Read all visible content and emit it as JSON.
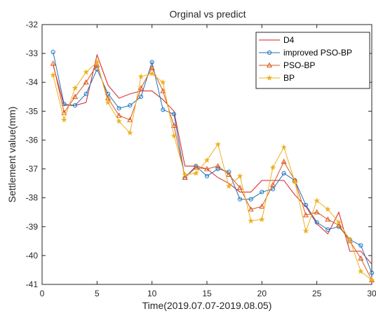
{
  "chart_data": {
    "type": "line",
    "title": "Orginal vs predict",
    "xlabel": "Time(2019.07.07-2019.08.05)",
    "ylabel": "Settlement value(mm)",
    "xlim": [
      0,
      30
    ],
    "ylim": [
      -41,
      -32
    ],
    "x_ticks": [
      0,
      5,
      10,
      15,
      20,
      25,
      30
    ],
    "y_ticks": [
      -32,
      -33,
      -34,
      -35,
      -36,
      -37,
      -38,
      -39,
      -40,
      -41
    ],
    "legend_position": "top-right",
    "grid": false,
    "series": [
      {
        "name": "D4",
        "color": "#d81e1e",
        "marker": "none",
        "x": [
          1,
          2,
          3,
          4,
          5,
          6,
          7,
          8,
          9,
          10,
          11,
          12,
          13,
          14,
          15,
          16,
          17,
          18,
          19,
          20,
          21,
          22,
          23,
          24,
          25,
          26,
          27,
          28,
          29,
          30
        ],
        "y": [
          -33.4,
          -34.8,
          -34.8,
          -34.7,
          -33.05,
          -34.1,
          -34.55,
          -34.4,
          -34.3,
          -34.3,
          -34.6,
          -35.0,
          -36.9,
          -36.9,
          -37.0,
          -37.3,
          -37.5,
          -37.8,
          -37.8,
          -37.4,
          -37.4,
          -37.4,
          -37.9,
          -38.3,
          -38.9,
          -39.25,
          -38.5,
          -39.85,
          -39.85,
          -40.3
        ]
      },
      {
        "name": "improved PSO-BP",
        "color": "#1e72bd",
        "marker": "circle",
        "x": [
          1,
          2,
          3,
          4,
          5,
          6,
          7,
          8,
          9,
          10,
          11,
          12,
          13,
          14,
          15,
          16,
          17,
          18,
          19,
          20,
          21,
          22,
          23,
          24,
          25,
          26,
          27,
          28,
          29,
          30
        ],
        "y": [
          -32.95,
          -34.75,
          -34.8,
          -34.4,
          -33.55,
          -34.4,
          -34.9,
          -34.8,
          -34.5,
          -33.3,
          -34.95,
          -35.1,
          -37.3,
          -36.9,
          -37.25,
          -37.0,
          -37.1,
          -38.05,
          -38.05,
          -37.8,
          -37.7,
          -37.15,
          -37.4,
          -38.25,
          -38.85,
          -39.1,
          -39.0,
          -39.45,
          -39.65,
          -40.6
        ]
      },
      {
        "name": "PSO-BP",
        "color": "#d95319",
        "marker": "triangle",
        "x": [
          1,
          2,
          3,
          4,
          5,
          6,
          7,
          8,
          9,
          10,
          11,
          12,
          13,
          14,
          15,
          16,
          17,
          18,
          19,
          20,
          21,
          22,
          23,
          24,
          25,
          26,
          27,
          28,
          29,
          30
        ],
        "y": [
          -33.35,
          -35.05,
          -34.5,
          -34.0,
          -33.4,
          -34.55,
          -35.15,
          -35.3,
          -34.2,
          -33.5,
          -34.3,
          -35.5,
          -37.3,
          -36.95,
          -37.0,
          -36.9,
          -37.2,
          -37.65,
          -38.4,
          -38.3,
          -37.55,
          -36.75,
          -37.4,
          -38.6,
          -38.5,
          -38.75,
          -38.95,
          -39.5,
          -40.1,
          -40.85
        ]
      },
      {
        "name": "BP",
        "color": "#edb120",
        "marker": "star",
        "x": [
          1,
          2,
          3,
          4,
          5,
          6,
          7,
          8,
          9,
          10,
          11,
          12,
          13,
          14,
          15,
          16,
          17,
          18,
          19,
          20,
          21,
          22,
          23,
          24,
          25,
          26,
          27,
          28,
          29,
          30
        ],
        "y": [
          -33.75,
          -35.3,
          -34.2,
          -33.65,
          -33.3,
          -34.7,
          -35.35,
          -35.75,
          -33.8,
          -33.7,
          -34.0,
          -35.85,
          -37.2,
          -37.15,
          -36.7,
          -36.15,
          -37.6,
          -37.25,
          -38.8,
          -38.75,
          -36.95,
          -36.25,
          -37.45,
          -39.15,
          -38.1,
          -38.4,
          -38.85,
          -39.45,
          -40.55,
          -40.85
        ]
      }
    ]
  }
}
